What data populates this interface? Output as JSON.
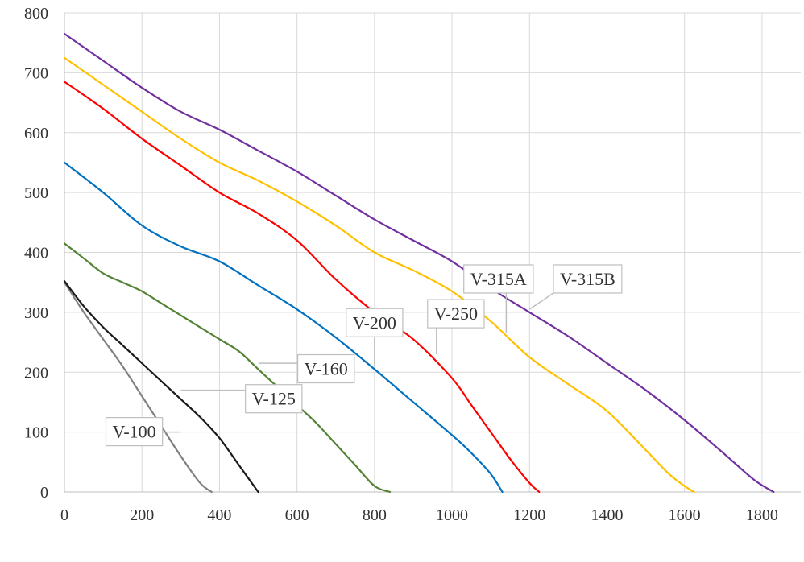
{
  "chart_data": {
    "type": "line",
    "title": "",
    "xlabel": "",
    "ylabel": "",
    "xlim": [
      0,
      1900
    ],
    "ylim": [
      0,
      800
    ],
    "xticks": [
      0,
      200,
      400,
      600,
      800,
      1000,
      1200,
      1400,
      1600,
      1800
    ],
    "yticks": [
      0,
      100,
      200,
      300,
      400,
      500,
      600,
      700,
      800
    ],
    "grid": true,
    "legend": "none (callout labels on curves)",
    "series": [
      {
        "name": "V-100",
        "color": "#808080",
        "x": [
          0,
          50,
          100,
          150,
          200,
          250,
          300,
          350,
          380
        ],
        "y": [
          350,
          300,
          255,
          210,
          160,
          110,
          60,
          15,
          0
        ],
        "label_at": [
          300,
          100
        ],
        "label_anchor": [
          180,
          100
        ]
      },
      {
        "name": "V-125",
        "color": "#1a1a1a",
        "x": [
          0,
          50,
          100,
          150,
          200,
          250,
          300,
          350,
          400,
          450,
          500
        ],
        "y": [
          352,
          310,
          275,
          245,
          215,
          185,
          155,
          125,
          90,
          45,
          0
        ],
        "label_at": [
          300,
          170
        ],
        "label_anchor": [
          540,
          155
        ]
      },
      {
        "name": "V-160",
        "color": "#548235",
        "x": [
          0,
          50,
          100,
          150,
          200,
          250,
          300,
          350,
          400,
          450,
          500,
          550,
          600,
          650,
          700,
          750,
          800,
          840
        ],
        "y": [
          415,
          390,
          365,
          350,
          335,
          315,
          295,
          275,
          255,
          235,
          205,
          175,
          145,
          115,
          80,
          45,
          10,
          0
        ],
        "label_at": [
          500,
          215
        ],
        "label_anchor": [
          675,
          205
        ]
      },
      {
        "name": "V-200",
        "color": "#0070c0",
        "x": [
          0,
          100,
          200,
          300,
          400,
          500,
          600,
          700,
          800,
          900,
          1000,
          1050,
          1100,
          1130
        ],
        "y": [
          550,
          500,
          445,
          410,
          385,
          345,
          305,
          258,
          205,
          150,
          95,
          65,
          30,
          0
        ],
        "label_at": [
          800,
          210
        ],
        "label_anchor": [
          800,
          282
        ]
      },
      {
        "name": "V-250",
        "color": "#ff0000",
        "x": [
          0,
          100,
          200,
          300,
          400,
          500,
          600,
          700,
          800,
          900,
          1000,
          1050,
          1100,
          1150,
          1200,
          1225
        ],
        "y": [
          685,
          640,
          590,
          545,
          500,
          465,
          420,
          355,
          300,
          255,
          190,
          145,
          100,
          55,
          15,
          0
        ],
        "label_at": [
          960,
          230
        ],
        "label_anchor": [
          1010,
          297
        ]
      },
      {
        "name": "V-315A",
        "color": "#ffc000",
        "x": [
          0,
          100,
          200,
          300,
          400,
          500,
          600,
          700,
          800,
          900,
          1000,
          1100,
          1200,
          1300,
          1400,
          1500,
          1560,
          1600,
          1625
        ],
        "y": [
          725,
          680,
          635,
          590,
          550,
          520,
          485,
          445,
          400,
          370,
          335,
          285,
          225,
          180,
          135,
          70,
          30,
          10,
          0
        ],
        "label_at": [
          1140,
          265
        ],
        "label_anchor": [
          1120,
          355
        ]
      },
      {
        "name": "V-315B",
        "color": "#7030a0",
        "x": [
          0,
          100,
          200,
          300,
          400,
          500,
          600,
          700,
          800,
          900,
          1000,
          1100,
          1200,
          1300,
          1400,
          1500,
          1600,
          1700,
          1780,
          1830
        ],
        "y": [
          765,
          720,
          675,
          635,
          605,
          570,
          535,
          495,
          455,
          420,
          385,
          340,
          300,
          260,
          215,
          170,
          120,
          65,
          20,
          0
        ],
        "label_at": [
          1200,
          305
        ],
        "label_anchor": [
          1350,
          355
        ]
      }
    ]
  }
}
